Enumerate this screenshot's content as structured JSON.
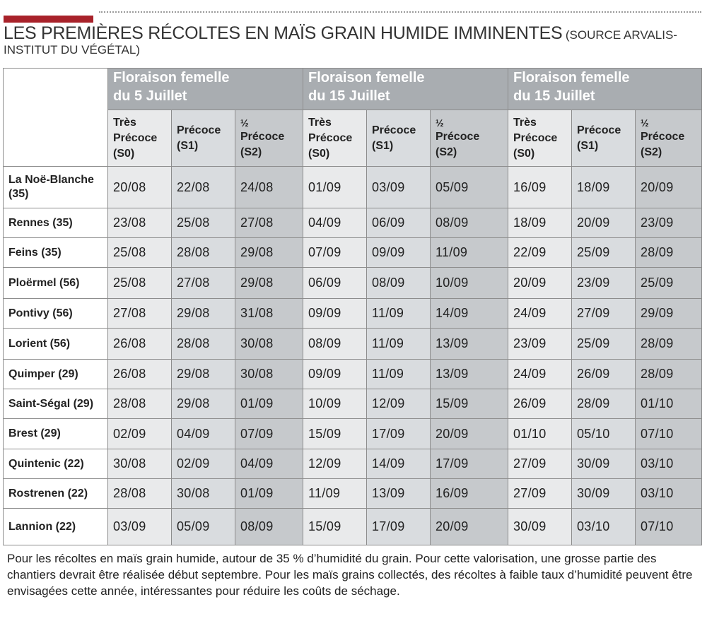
{
  "title": {
    "main": "LES PREMIÈRES RÉCOLTES EN MAÏS GRAIN HUMIDE IMMINENTES",
    "source": "(SOURCE ARVALIS-INSTITUT DU VÉGÉTAL)"
  },
  "table": {
    "groups": [
      {
        "label": "Floraison femelle du  5 Juillet"
      },
      {
        "label": "Floraison femelle du  15 Juillet"
      },
      {
        "label": "Floraison femelle du  15 Juillet"
      }
    ],
    "subcolumns": [
      {
        "l1": "Très",
        "l2": "Précoce",
        "l3": "(S0)"
      },
      {
        "l1": "Précoce",
        "l2": "(S1)"
      },
      {
        "l1": "½",
        "l2": "Précoce",
        "l3": "(S2)"
      },
      {
        "l1": "Très",
        "l2": "Précoce",
        "l3": "(S0)"
      },
      {
        "l1": "Précoce",
        "l2": "(S1)"
      },
      {
        "l1": "½",
        "l2": "Précoce",
        "l3": "(S2)"
      },
      {
        "l1": "Très",
        "l2": "Précoce",
        "l3": "(S0)"
      },
      {
        "l1": "Précoce",
        "l2": "(S1)"
      },
      {
        "l1": "½",
        "l2": "Précoce",
        "l3": "(S2)"
      }
    ],
    "rows": [
      {
        "location": "La Noë-Blanche (35)",
        "values": [
          "20/08",
          "22/08",
          "24/08",
          "01/09",
          "03/09",
          "05/09",
          "16/09",
          "18/09",
          "20/09"
        ]
      },
      {
        "location": "Rennes (35)",
        "values": [
          "23/08",
          "25/08",
          "27/08",
          "04/09",
          "06/09",
          "08/09",
          "18/09",
          "20/09",
          "23/09"
        ]
      },
      {
        "location": "Feins (35)",
        "values": [
          "25/08",
          "28/08",
          "29/08",
          "07/09",
          "09/09",
          "11/09",
          "22/09",
          "25/09",
          "28/09"
        ]
      },
      {
        "location": "Ploërmel (56)",
        "values": [
          "25/08",
          "27/08",
          "29/08",
          "06/09",
          "08/09",
          "10/09",
          "20/09",
          "23/09",
          "25/09"
        ]
      },
      {
        "location": "Pontivy (56)",
        "values": [
          "27/08",
          "29/08",
          "31/08",
          "09/09",
          "11/09",
          "14/09",
          "24/09",
          "27/09",
          "29/09"
        ]
      },
      {
        "location": "Lorient (56)",
        "values": [
          "26/08",
          "28/08",
          "30/08",
          "08/09",
          "11/09",
          "13/09",
          "23/09",
          "25/09",
          "28/09"
        ]
      },
      {
        "location": "Quimper (29)",
        "values": [
          "26/08",
          "29/08",
          "30/08",
          "09/09",
          "11/09",
          "13/09",
          "24/09",
          "26/09",
          "28/09"
        ]
      },
      {
        "location": "Saint-Ségal (29)",
        "values": [
          "28/08",
          "29/08",
          "01/09",
          "10/09",
          "12/09",
          "15/09",
          "26/09",
          "28/09",
          "01/10"
        ]
      },
      {
        "location": "Brest (29)",
        "values": [
          "02/09",
          "04/09",
          "07/09",
          "15/09",
          "17/09",
          "20/09",
          "01/10",
          "05/10",
          "07/10"
        ]
      },
      {
        "location": "Quintenic (22)",
        "values": [
          "30/08",
          "02/09",
          "04/09",
          "12/09",
          "14/09",
          "17/09",
          "27/09",
          "30/09",
          "03/10"
        ]
      },
      {
        "location": "Rostrenen (22)",
        "values": [
          "28/08",
          "30/08",
          "01/09",
          "11/09",
          "13/09",
          "16/09",
          "27/09",
          "30/09",
          "03/10"
        ]
      },
      {
        "location": "Lannion (22)",
        "values": [
          "03/09",
          "05/09",
          "08/09",
          "15/09",
          "17/09",
          "20/09",
          "30/09",
          "03/10",
          "07/10"
        ]
      }
    ]
  },
  "note": "Pour les récoltes en maïs grain humide, autour de 35 % d’humidité du grain. Pour cette valorisation, une grosse partie des chantiers devrait être réalisée début septembre. Pour les maïs grains collectés, des récoltes à faible taux d’humidité peuvent être envisagées cette année, intéressantes pour réduire les coûts de séchage.",
  "colors": {
    "accent": "#a8222a",
    "header_group": "#a9adb1",
    "col_shade_1": "#e9eaeb",
    "col_shade_2": "#d9dcdf",
    "col_shade_3": "#c6c9cc"
  }
}
